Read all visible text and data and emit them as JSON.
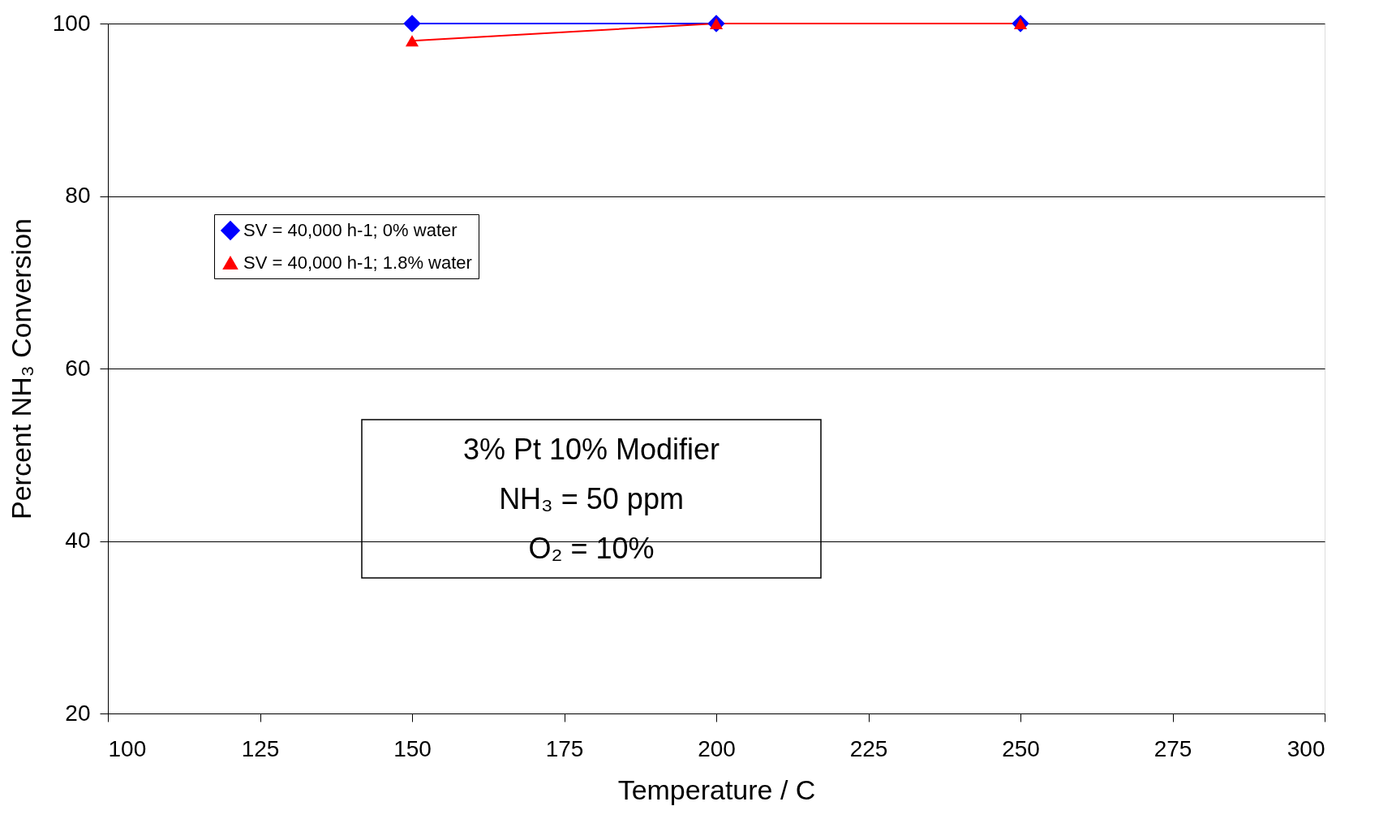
{
  "chart_data": {
    "type": "line",
    "xlabel": "Temperature / C",
    "ylabel": "Percent NH₃ Conversion",
    "x": [
      150,
      200,
      250
    ],
    "series": [
      {
        "name": "SV = 40,000 h-1; 0% water",
        "color": "#0000ff",
        "marker": "diamond",
        "values": [
          100,
          100,
          100
        ]
      },
      {
        "name": "SV = 40,000 h-1; 1.8% water",
        "color": "#ff0000",
        "marker": "triangle",
        "values": [
          98,
          100,
          100
        ]
      }
    ],
    "xlim": [
      100,
      300
    ],
    "xticks": [
      100,
      125,
      150,
      175,
      200,
      225,
      250,
      275,
      300
    ],
    "ylim": [
      20,
      100
    ],
    "yticks": [
      20,
      40,
      60,
      80,
      100
    ],
    "grid": "y",
    "legend": "top left",
    "annotations": [
      "3% Pt 10% Modifier",
      "NH₃ = 50 ppm",
      "O₂ = 10%"
    ]
  }
}
